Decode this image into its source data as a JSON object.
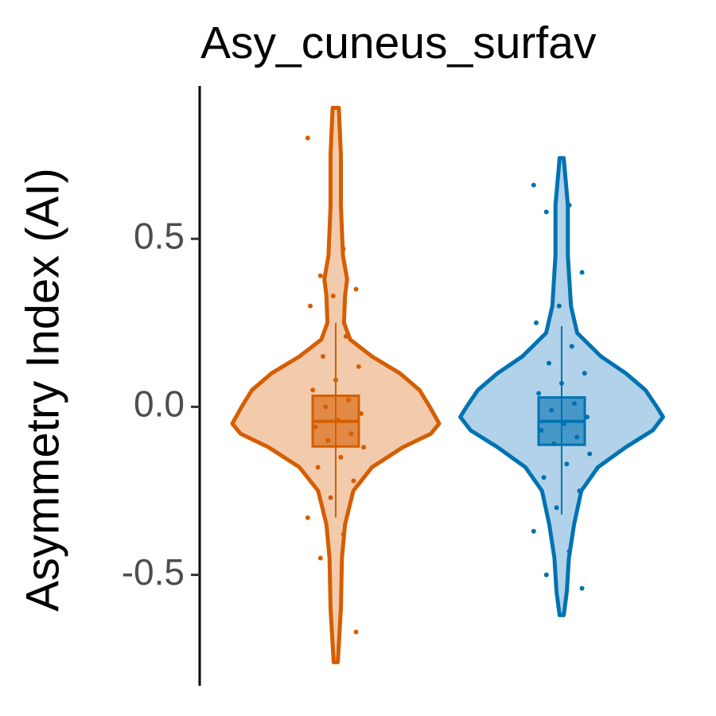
{
  "chart_data": {
    "type": "violin",
    "title": "Asy_cuneus_surfav",
    "y_label": "Asymmetry Index (AI)",
    "ylim": [
      -0.83,
      0.955
    ],
    "yticks": [
      -0.5,
      {
        "value": 0,
        "label": "0.0"
      },
      0.5
    ],
    "series": [
      {
        "color": "#d55e00",
        "fill": "#f2cbad",
        "violin": {
          "y": [
            0.89,
            0.75,
            0.6,
            0.45,
            0.38,
            0.33,
            0.25,
            0.2,
            0.15,
            0.1,
            0.05,
            0.0,
            -0.05,
            -0.08,
            -0.12,
            -0.18,
            -0.25,
            -0.35,
            -0.45,
            -0.6,
            -0.76
          ],
          "density": [
            0.03,
            0.05,
            0.05,
            0.07,
            0.11,
            0.09,
            0.08,
            0.14,
            0.35,
            0.62,
            0.81,
            0.91,
            1.0,
            0.92,
            0.65,
            0.35,
            0.17,
            0.09,
            0.06,
            0.05,
            0.02
          ]
        },
        "box": {
          "whisker_low": -0.33,
          "q1": -0.118,
          "median": -0.043,
          "q3": 0.033,
          "whisker_high": 0.25
        },
        "points": [
          0.8,
          0.47,
          0.39,
          0.35,
          0.33,
          0.3,
          0.21,
          0.15,
          0.12,
          0.08,
          0.05,
          0.02,
          0.0,
          -0.02,
          -0.04,
          -0.06,
          -0.08,
          -0.1,
          -0.12,
          -0.15,
          -0.18,
          -0.22,
          -0.27,
          -0.33,
          -0.38,
          -0.45,
          -0.67
        ]
      },
      {
        "color": "#0072b2",
        "fill": "#b1d2e8",
        "violin": {
          "y": [
            0.74,
            0.6,
            0.45,
            0.3,
            0.22,
            0.15,
            0.1,
            0.05,
            0.0,
            -0.03,
            -0.07,
            -0.12,
            -0.18,
            -0.25,
            -0.35,
            -0.45,
            -0.55,
            -0.62
          ],
          "density": [
            0.02,
            0.06,
            0.06,
            0.09,
            0.15,
            0.38,
            0.62,
            0.81,
            0.92,
            0.98,
            0.88,
            0.62,
            0.35,
            0.19,
            0.12,
            0.07,
            0.05,
            0.02
          ]
        },
        "box": {
          "whisker_low": -0.32,
          "q1": -0.113,
          "median": -0.043,
          "q3": 0.028,
          "whisker_high": 0.24
        },
        "points": [
          0.66,
          0.6,
          0.58,
          0.4,
          0.3,
          0.25,
          0.18,
          0.13,
          0.1,
          0.07,
          0.04,
          0.01,
          -0.01,
          -0.03,
          -0.05,
          -0.07,
          -0.09,
          -0.11,
          -0.14,
          -0.17,
          -0.21,
          -0.25,
          -0.3,
          -0.37,
          -0.43,
          -0.5,
          -0.54
        ]
      }
    ]
  }
}
